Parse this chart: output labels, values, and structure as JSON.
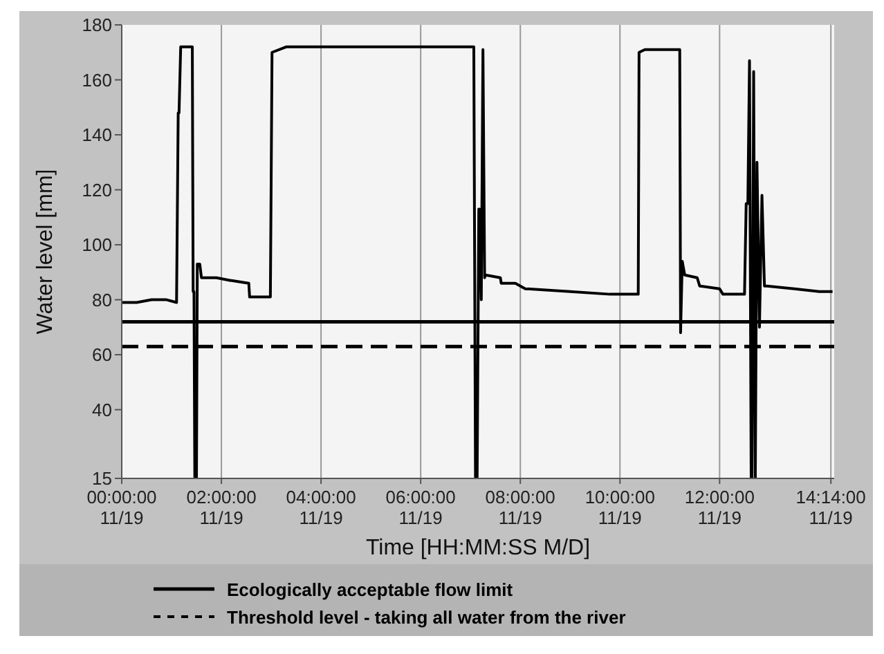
{
  "chart_data": {
    "type": "line",
    "xlabel": "Time [HH:MM:SS M/D]",
    "ylabel": "Water level [mm]",
    "xlim": [
      "--11-19T00:00",
      "--11-19T14:18"
    ],
    "xticks": [
      {
        "value": "--11-19T00:00",
        "label": "00:00:00 11/19"
      },
      {
        "value": "--11-19T02:00",
        "label": "02:00:00 11/19"
      },
      {
        "value": "--11-19T04:00",
        "label": "04:00:00 11/19"
      },
      {
        "value": "--11-19T06:00",
        "label": "06:00:00 11/19"
      },
      {
        "value": "--11-19T08:00",
        "label": "08:00:00 11/19"
      },
      {
        "value": "--11-19T10:00",
        "label": "10:00:00 11/19"
      },
      {
        "value": "--11-19T12:00",
        "label": "12:00:00 11/19"
      },
      {
        "value": "--11-19T14:14",
        "label": "14:14:00 11/19"
      }
    ],
    "ylim": [
      15,
      180
    ],
    "yticks": [
      15,
      40,
      60,
      80,
      100,
      120,
      140,
      160,
      180
    ],
    "grid": "x",
    "legend": "bottom",
    "line_style": "solid",
    "marker": "none",
    "series": [
      {
        "color": "#000000",
        "x": [
          "--11-19T00:00",
          "--11-19T00:18",
          "--11-19T00:36",
          "--11-19T00:54",
          "--11-19T01:06",
          "--11-19T01:08",
          "--11-19T01:09",
          "--11-19T01:11",
          "--11-19T01:25",
          "--11-19T01:26",
          "--11-19T01:27",
          "--11-19T01:28",
          "--11-19T01:30",
          "--11-19T01:31",
          "--11-19T01:34",
          "--11-19T01:36",
          "--11-19T01:54",
          "--11-19T02:11",
          "--11-19T02:12",
          "--11-19T02:33",
          "--11-19T02:34",
          "--11-19T02:57",
          "--11-19T02:59",
          "--11-19T03:01",
          "--11-19T03:18",
          "--11-19T05:00",
          "--11-19T07:03",
          "--11-19T07:04",
          "--11-19T07:06",
          "--11-19T07:08",
          "--11-19T07:10",
          "--11-19T07:11",
          "--11-19T07:13",
          "--11-19T07:15",
          "--11-19T07:17",
          "--11-19T07:18",
          "--11-19T07:36",
          "--11-19T07:37",
          "--11-19T07:54",
          "--11-19T08:06",
          "--11-19T09:00",
          "--11-19T09:48",
          "--11-19T10:22",
          "--11-19T10:23",
          "--11-19T10:30",
          "--11-19T11:11",
          "--11-19T11:12",
          "--11-19T11:13",
          "--11-19T11:15",
          "--11-19T11:18",
          "--11-19T11:33",
          "--11-19T11:36",
          "--11-19T12:00",
          "--11-19T12:04",
          "--11-19T12:30",
          "--11-19T12:32",
          "--11-19T12:34",
          "--11-19T12:36",
          "--11-19T12:38",
          "--11-19T12:39",
          "--11-19T12:41",
          "--11-19T12:43",
          "--11-19T12:45",
          "--11-19T12:48",
          "--11-19T12:51",
          "--11-19T12:54",
          "--11-19T12:57",
          "--11-19T13:30",
          "--11-19T14:00",
          "--11-19T14:16"
        ],
        "values": [
          79,
          79,
          80,
          80,
          79,
          148,
          148,
          172,
          172,
          83,
          83,
          15,
          15,
          93,
          93,
          88,
          88,
          87,
          87,
          86,
          81,
          81,
          81,
          170,
          172,
          172,
          172,
          172,
          15,
          15,
          113,
          113,
          80,
          171,
          88,
          89,
          88,
          86,
          86,
          84,
          83,
          82,
          82,
          170,
          171,
          171,
          171,
          68,
          94,
          89,
          88,
          85,
          84,
          82,
          82,
          115,
          115,
          167,
          15,
          15,
          163,
          15,
          130,
          70,
          118,
          85,
          85,
          84,
          83,
          83
        ]
      }
    ],
    "ref_lines": [
      {
        "axis": "y",
        "value": 72,
        "label": "Ecologically acceptable flow limit",
        "line_style": "solid",
        "color": "#000000"
      },
      {
        "axis": "y",
        "value": 63,
        "label": "Threshold level - taking all water from the river",
        "line_style": "dashed",
        "color": "#000000"
      }
    ]
  }
}
